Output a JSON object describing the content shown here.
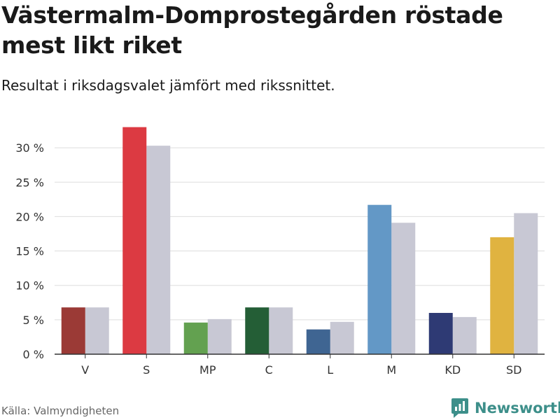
{
  "header": {
    "title": "Västermalm-Domprostegården röstade mest likt riket",
    "subtitle": "Resultat i riksdagsvalet jämfört med rikssnittet."
  },
  "footer": {
    "source": "Källa: Valmyndigheten",
    "brand": "Newsworthy"
  },
  "colors": {
    "national": "#c8c8d4",
    "grid": "#dddddd",
    "axis": "#333333",
    "brand": "#3d8f8a"
  },
  "chart_data": {
    "type": "bar",
    "title": "Västermalm-Domprostegården röstade mest likt riket",
    "xlabel": "",
    "ylabel": "",
    "categories": [
      "V",
      "S",
      "MP",
      "C",
      "L",
      "M",
      "KD",
      "SD"
    ],
    "ylim": [
      0,
      33
    ],
    "yticks": [
      0,
      5,
      10,
      15,
      20,
      25,
      30
    ],
    "ytick_labels": [
      "0 %",
      "5 %",
      "10 %",
      "15 %",
      "20 %",
      "25 %",
      "30 %"
    ],
    "series": [
      {
        "name": "Västermalm-Domprostegården",
        "values": [
          6.8,
          33.0,
          4.6,
          6.8,
          3.6,
          21.7,
          6.0,
          17.0
        ],
        "colors": [
          "#9b3a36",
          "#dc3a42",
          "#63a150",
          "#245e36",
          "#3f6592",
          "#6398c6",
          "#2e3a74",
          "#e0b340"
        ]
      },
      {
        "name": "Rikssnitt",
        "values": [
          6.8,
          30.3,
          5.1,
          6.8,
          4.7,
          19.1,
          5.4,
          20.5
        ],
        "color": "#c8c8d4"
      }
    ],
    "grid": true,
    "legend": "none"
  }
}
